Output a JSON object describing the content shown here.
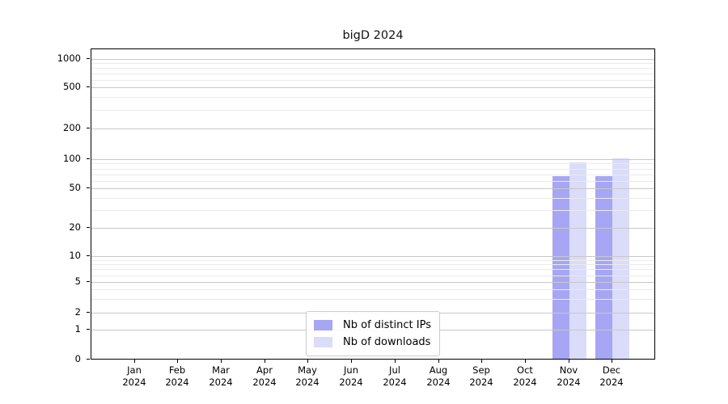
{
  "chart_data": {
    "type": "bar",
    "title": "bigD 2024",
    "categories": [
      "Jan 2024",
      "Feb 2024",
      "Mar 2024",
      "Apr 2024",
      "May 2024",
      "Jun 2024",
      "Jul 2024",
      "Aug 2024",
      "Sep 2024",
      "Oct 2024",
      "Nov 2024",
      "Dec 2024"
    ],
    "series": [
      {
        "name": "Nb of distinct IPs",
        "color": "#a6a6f4",
        "values": [
          0,
          0,
          0,
          0,
          0,
          0,
          0,
          0,
          0,
          0,
          65,
          65
        ]
      },
      {
        "name": "Nb of downloads",
        "color": "#dadcf9",
        "values": [
          0,
          0,
          0,
          0,
          0,
          0,
          0,
          0,
          0,
          0,
          90,
          100
        ]
      }
    ],
    "yscale": "symlog",
    "yticks": [
      0,
      1,
      2,
      5,
      10,
      20,
      50,
      100,
      200,
      500,
      1000
    ],
    "ylim": [
      0,
      1260
    ],
    "xlabel": "",
    "ylabel": "",
    "grid": true,
    "legend_position": "lower center"
  }
}
